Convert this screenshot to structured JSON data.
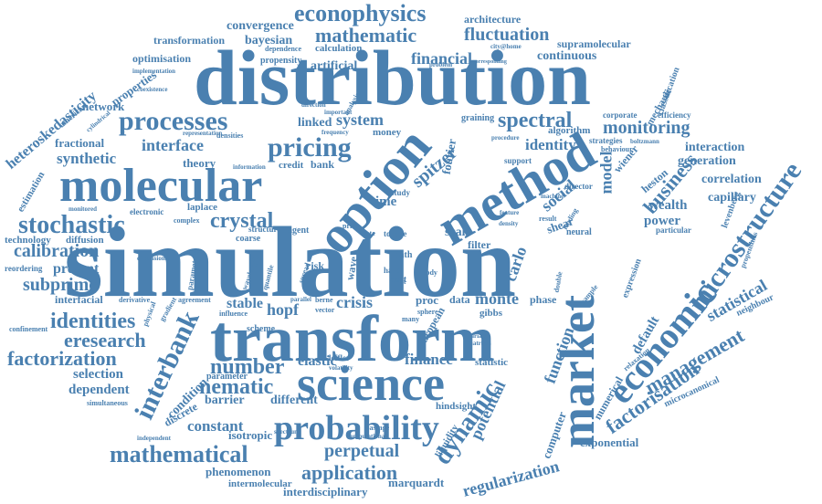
{
  "style": {
    "text_color": "#4a80b0",
    "background": "#ffffff"
  },
  "words": [
    {
      "text": "simulation"
    },
    {
      "text": "distribution"
    },
    {
      "text": "transform"
    },
    {
      "text": "molecular"
    },
    {
      "text": "science"
    },
    {
      "text": "option"
    },
    {
      "text": "method"
    },
    {
      "text": "market"
    },
    {
      "text": "probability"
    },
    {
      "text": "economic"
    },
    {
      "text": "processes"
    },
    {
      "text": "microstructure"
    },
    {
      "text": "interbank"
    },
    {
      "text": "pricing"
    },
    {
      "text": "stochastic"
    },
    {
      "text": "mathematical"
    },
    {
      "text": "crystal"
    },
    {
      "text": "spectral"
    },
    {
      "text": "identities"
    },
    {
      "text": "econophysics"
    },
    {
      "text": "eresearch"
    },
    {
      "text": "management"
    },
    {
      "text": "factorisation"
    },
    {
      "text": "dynamic"
    },
    {
      "text": "nematic"
    },
    {
      "text": "number"
    },
    {
      "text": "factorization"
    },
    {
      "text": "application"
    },
    {
      "text": "mathematic"
    },
    {
      "text": "fluctuation"
    },
    {
      "text": "monitoring"
    },
    {
      "text": "business"
    },
    {
      "text": "calibration"
    },
    {
      "text": "subprime"
    },
    {
      "text": "perpetual"
    },
    {
      "text": "regularization"
    },
    {
      "text": "spitzer"
    },
    {
      "text": "statistical"
    },
    {
      "text": "potential"
    },
    {
      "text": "function"
    },
    {
      "text": "model"
    },
    {
      "text": "interface"
    },
    {
      "text": "system"
    },
    {
      "text": "financial"
    },
    {
      "text": "synthetic"
    },
    {
      "text": "finance"
    },
    {
      "text": "heteroskedasticity"
    },
    {
      "text": "social"
    },
    {
      "text": "identity"
    },
    {
      "text": "constant"
    },
    {
      "text": "present"
    },
    {
      "text": "selection"
    },
    {
      "text": "dependent"
    },
    {
      "text": "exponential"
    },
    {
      "text": "correlation"
    },
    {
      "text": "generation"
    },
    {
      "text": "interaction"
    },
    {
      "text": "monte"
    },
    {
      "text": "carlo"
    },
    {
      "text": "crisis"
    },
    {
      "text": "hopf"
    },
    {
      "text": "stable"
    },
    {
      "text": "elastic"
    },
    {
      "text": "wealth"
    },
    {
      "text": "power"
    },
    {
      "text": "default"
    },
    {
      "text": "capillary"
    },
    {
      "text": "computer"
    },
    {
      "text": "numerical"
    },
    {
      "text": "continuous"
    },
    {
      "text": "bayesian"
    },
    {
      "text": "convergence"
    },
    {
      "text": "architecture"
    },
    {
      "text": "transformation"
    },
    {
      "text": "artificial"
    },
    {
      "text": "optimisation"
    },
    {
      "text": "calculation"
    },
    {
      "text": "supramolecular"
    },
    {
      "text": "network"
    },
    {
      "text": "properties"
    },
    {
      "text": "fractional"
    },
    {
      "text": "theory"
    },
    {
      "text": "time"
    },
    {
      "text": "fourier"
    },
    {
      "text": "laplace"
    },
    {
      "text": "electronic"
    },
    {
      "text": "technology"
    },
    {
      "text": "diffusion"
    },
    {
      "text": "estimation"
    },
    {
      "text": "interfacial"
    },
    {
      "text": "condition"
    },
    {
      "text": "discrete"
    },
    {
      "text": "barrier"
    },
    {
      "text": "different"
    },
    {
      "text": "phenomenon"
    },
    {
      "text": "intermolecular"
    },
    {
      "text": "interdisciplinary"
    },
    {
      "text": "marquardt"
    },
    {
      "text": "levenberg"
    },
    {
      "text": "heston"
    },
    {
      "text": "neighbour"
    },
    {
      "text": "microcanonical"
    },
    {
      "text": "isotropic"
    },
    {
      "text": "european"
    },
    {
      "text": "liquidity"
    },
    {
      "text": "statistic"
    },
    {
      "text": "hindsight"
    },
    {
      "text": "scale"
    },
    {
      "text": "filter"
    },
    {
      "text": "shear"
    },
    {
      "text": "wiener"
    },
    {
      "text": "algorithm"
    },
    {
      "text": "linked"
    },
    {
      "text": "money"
    },
    {
      "text": "credit"
    },
    {
      "text": "bank"
    },
    {
      "text": "wave"
    },
    {
      "text": "data"
    },
    {
      "text": "proc"
    },
    {
      "text": "phase"
    },
    {
      "text": "risk"
    },
    {
      "text": "gibbs"
    },
    {
      "text": "propensity"
    },
    {
      "text": "dependence"
    },
    {
      "text": "graining"
    },
    {
      "text": "classification"
    },
    {
      "text": "mechanic"
    },
    {
      "text": "corporate"
    },
    {
      "text": "efficiency"
    },
    {
      "text": "strategies"
    },
    {
      "text": "boltzmann"
    },
    {
      "text": "behaviour"
    },
    {
      "text": "expression"
    },
    {
      "text": "propensities"
    },
    {
      "text": "relaxation"
    },
    {
      "text": "simultaneous"
    },
    {
      "text": "independent"
    },
    {
      "text": "confinement"
    },
    {
      "text": "reordering"
    },
    {
      "text": "parameter"
    },
    {
      "text": "scheme"
    },
    {
      "text": "coarse"
    },
    {
      "text": "structure"
    },
    {
      "text": "agent"
    },
    {
      "text": "cost"
    },
    {
      "text": "matrices"
    },
    {
      "text": "variable"
    },
    {
      "text": "director"
    },
    {
      "text": "machine"
    },
    {
      "text": "city@home"
    },
    {
      "text": "particular"
    },
    {
      "text": "lending"
    },
    {
      "text": "result"
    },
    {
      "text": "neural"
    },
    {
      "text": "american"
    },
    {
      "text": "cylindrical"
    },
    {
      "text": "implementation"
    },
    {
      "text": "coexistence"
    },
    {
      "text": "representation"
    },
    {
      "text": "densities"
    },
    {
      "text": "information"
    },
    {
      "text": "frequency"
    },
    {
      "text": "direction"
    },
    {
      "text": "important"
    },
    {
      "text": "problem"
    },
    {
      "text": "study"
    },
    {
      "text": "support"
    },
    {
      "text": "berne"
    },
    {
      "text": "vector"
    },
    {
      "text": "parallel"
    },
    {
      "text": "influence"
    },
    {
      "text": "agreement"
    },
    {
      "text": "gradient"
    },
    {
      "text": "physical"
    },
    {
      "text": "derivative"
    },
    {
      "text": "complex"
    },
    {
      "text": "leffler"
    },
    {
      "text": "volatility"
    },
    {
      "text": "passage"
    },
    {
      "text": "spectrum"
    },
    {
      "text": "computational"
    },
    {
      "text": "path"
    },
    {
      "text": "sphere"
    },
    {
      "text": "many"
    },
    {
      "text": "fast"
    },
    {
      "text": "body"
    },
    {
      "text": "hard"
    },
    {
      "text": "price"
    },
    {
      "text": "rate"
    },
    {
      "text": "torque"
    },
    {
      "text": "feature"
    },
    {
      "text": "density"
    },
    {
      "text": "double"
    },
    {
      "text": "example"
    },
    {
      "text": "procedure"
    },
    {
      "text": "corresponding"
    },
    {
      "text": "analysis"
    },
    {
      "text": "spread"
    },
    {
      "text": "wavelength"
    },
    {
      "text": "quantile"
    },
    {
      "text": "parametric"
    },
    {
      "text": "dimensional"
    },
    {
      "text": "monitored"
    }
  ]
}
